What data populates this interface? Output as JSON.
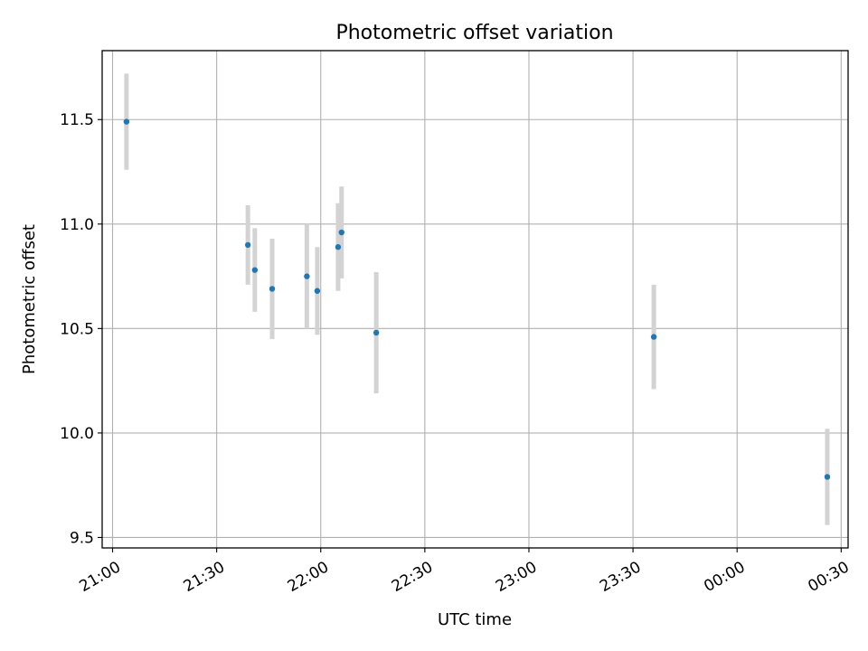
{
  "chart_data": {
    "type": "scatter",
    "title": "Photometric offset variation",
    "xlabel": "UTC time",
    "ylabel": "Photometric offset",
    "x_tick_labels": [
      "21:00",
      "21:30",
      "22:00",
      "22:30",
      "23:00",
      "23:30",
      "00:00",
      "00:30"
    ],
    "y_tick_labels": [
      "9.5",
      "10.0",
      "10.5",
      "11.0",
      "11.5"
    ],
    "xlim": [
      "20:57",
      "00:32"
    ],
    "ylim": [
      9.45,
      11.83
    ],
    "grid": true,
    "errorbar_color": "#d3d3d3",
    "point_color": "#1f77b4",
    "series": [
      {
        "points": [
          {
            "x": "21:04",
            "y": 11.49,
            "err": 0.23
          },
          {
            "x": "21:39",
            "y": 10.9,
            "err": 0.19
          },
          {
            "x": "21:41",
            "y": 10.78,
            "err": 0.2
          },
          {
            "x": "21:46",
            "y": 10.69,
            "err": 0.24
          },
          {
            "x": "21:56",
            "y": 10.75,
            "err": 0.25
          },
          {
            "x": "21:59",
            "y": 10.68,
            "err": 0.21
          },
          {
            "x": "22:05",
            "y": 10.89,
            "err": 0.21
          },
          {
            "x": "22:06",
            "y": 10.96,
            "err": 0.22
          },
          {
            "x": "22:16",
            "y": 10.48,
            "err": 0.29
          },
          {
            "x": "23:36",
            "y": 10.46,
            "err": 0.25
          },
          {
            "x": "00:26",
            "y": 9.79,
            "err": 0.23
          }
        ]
      }
    ]
  }
}
